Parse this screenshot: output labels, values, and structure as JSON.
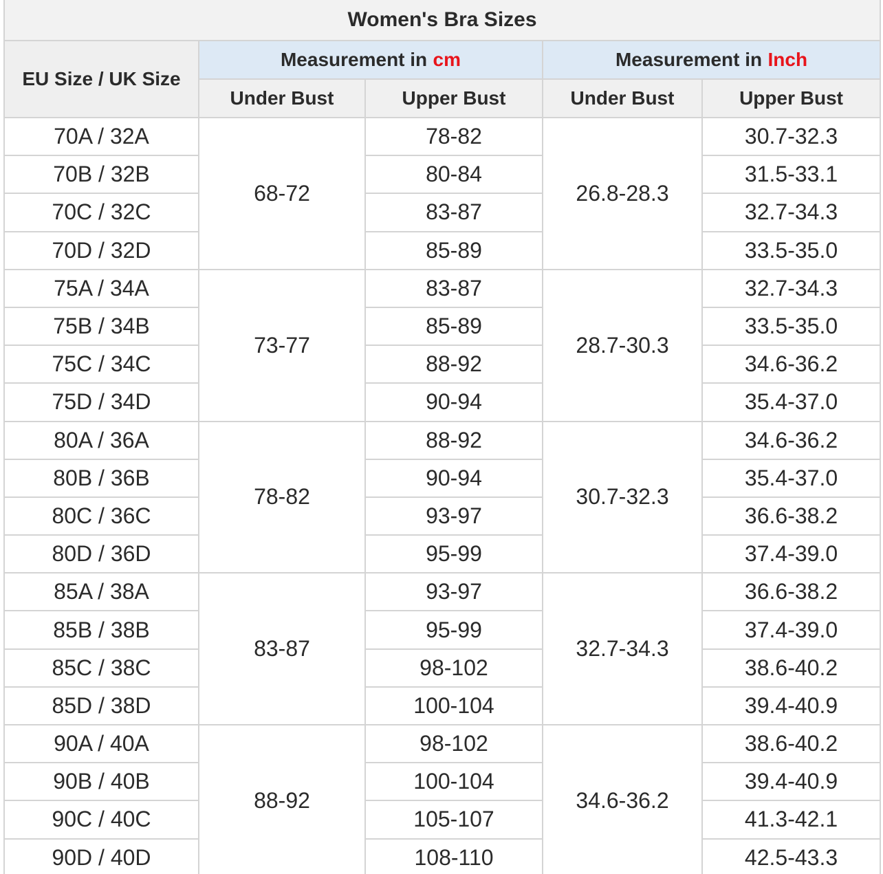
{
  "title": "Women's Bra Sizes",
  "header": {
    "size": "EU Size / UK Size",
    "groups": [
      {
        "prefix": "Measurement in",
        "unit": "cm"
      },
      {
        "prefix": "Measurement in",
        "unit": "Inch"
      }
    ],
    "sub": [
      "Under Bust",
      "Upper Bust",
      "Under Bust",
      "Upper Bust"
    ]
  },
  "groups": [
    {
      "under_cm": "68-72",
      "under_inch": "26.8-28.3",
      "rows": [
        [
          "70A / 32A",
          "78-82",
          "30.7-32.3"
        ],
        [
          "70B / 32B",
          "80-84",
          "31.5-33.1"
        ],
        [
          "70C / 32C",
          "83-87",
          "32.7-34.3"
        ],
        [
          "70D / 32D",
          "85-89",
          "33.5-35.0"
        ]
      ]
    },
    {
      "under_cm": "73-77",
      "under_inch": "28.7-30.3",
      "rows": [
        [
          "75A / 34A",
          "83-87",
          "32.7-34.3"
        ],
        [
          "75B / 34B",
          "85-89",
          "33.5-35.0"
        ],
        [
          "75C / 34C",
          "88-92",
          "34.6-36.2"
        ],
        [
          "75D / 34D",
          "90-94",
          "35.4-37.0"
        ]
      ]
    },
    {
      "under_cm": "78-82",
      "under_inch": "30.7-32.3",
      "rows": [
        [
          "80A / 36A",
          "88-92",
          "34.6-36.2"
        ],
        [
          "80B / 36B",
          "90-94",
          "35.4-37.0"
        ],
        [
          "80C / 36C",
          "93-97",
          "36.6-38.2"
        ],
        [
          "80D / 36D",
          "95-99",
          "37.4-39.0"
        ]
      ]
    },
    {
      "under_cm": "83-87",
      "under_inch": "32.7-34.3",
      "rows": [
        [
          "85A / 38A",
          "93-97",
          "36.6-38.2"
        ],
        [
          "85B / 38B",
          "95-99",
          "37.4-39.0"
        ],
        [
          "85C / 38C",
          "98-102",
          "38.6-40.2"
        ],
        [
          "85D / 38D",
          "100-104",
          "39.4-40.9"
        ]
      ]
    },
    {
      "under_cm": "88-92",
      "under_inch": "34.6-36.2",
      "rows": [
        [
          "90A / 40A",
          "98-102",
          "38.6-40.2"
        ],
        [
          "90B / 40B",
          "100-104",
          "39.4-40.9"
        ],
        [
          "90C / 40C",
          "105-107",
          "41.3-42.1"
        ],
        [
          "90D / 40D",
          "108-110",
          "42.5-43.3"
        ]
      ]
    }
  ]
}
